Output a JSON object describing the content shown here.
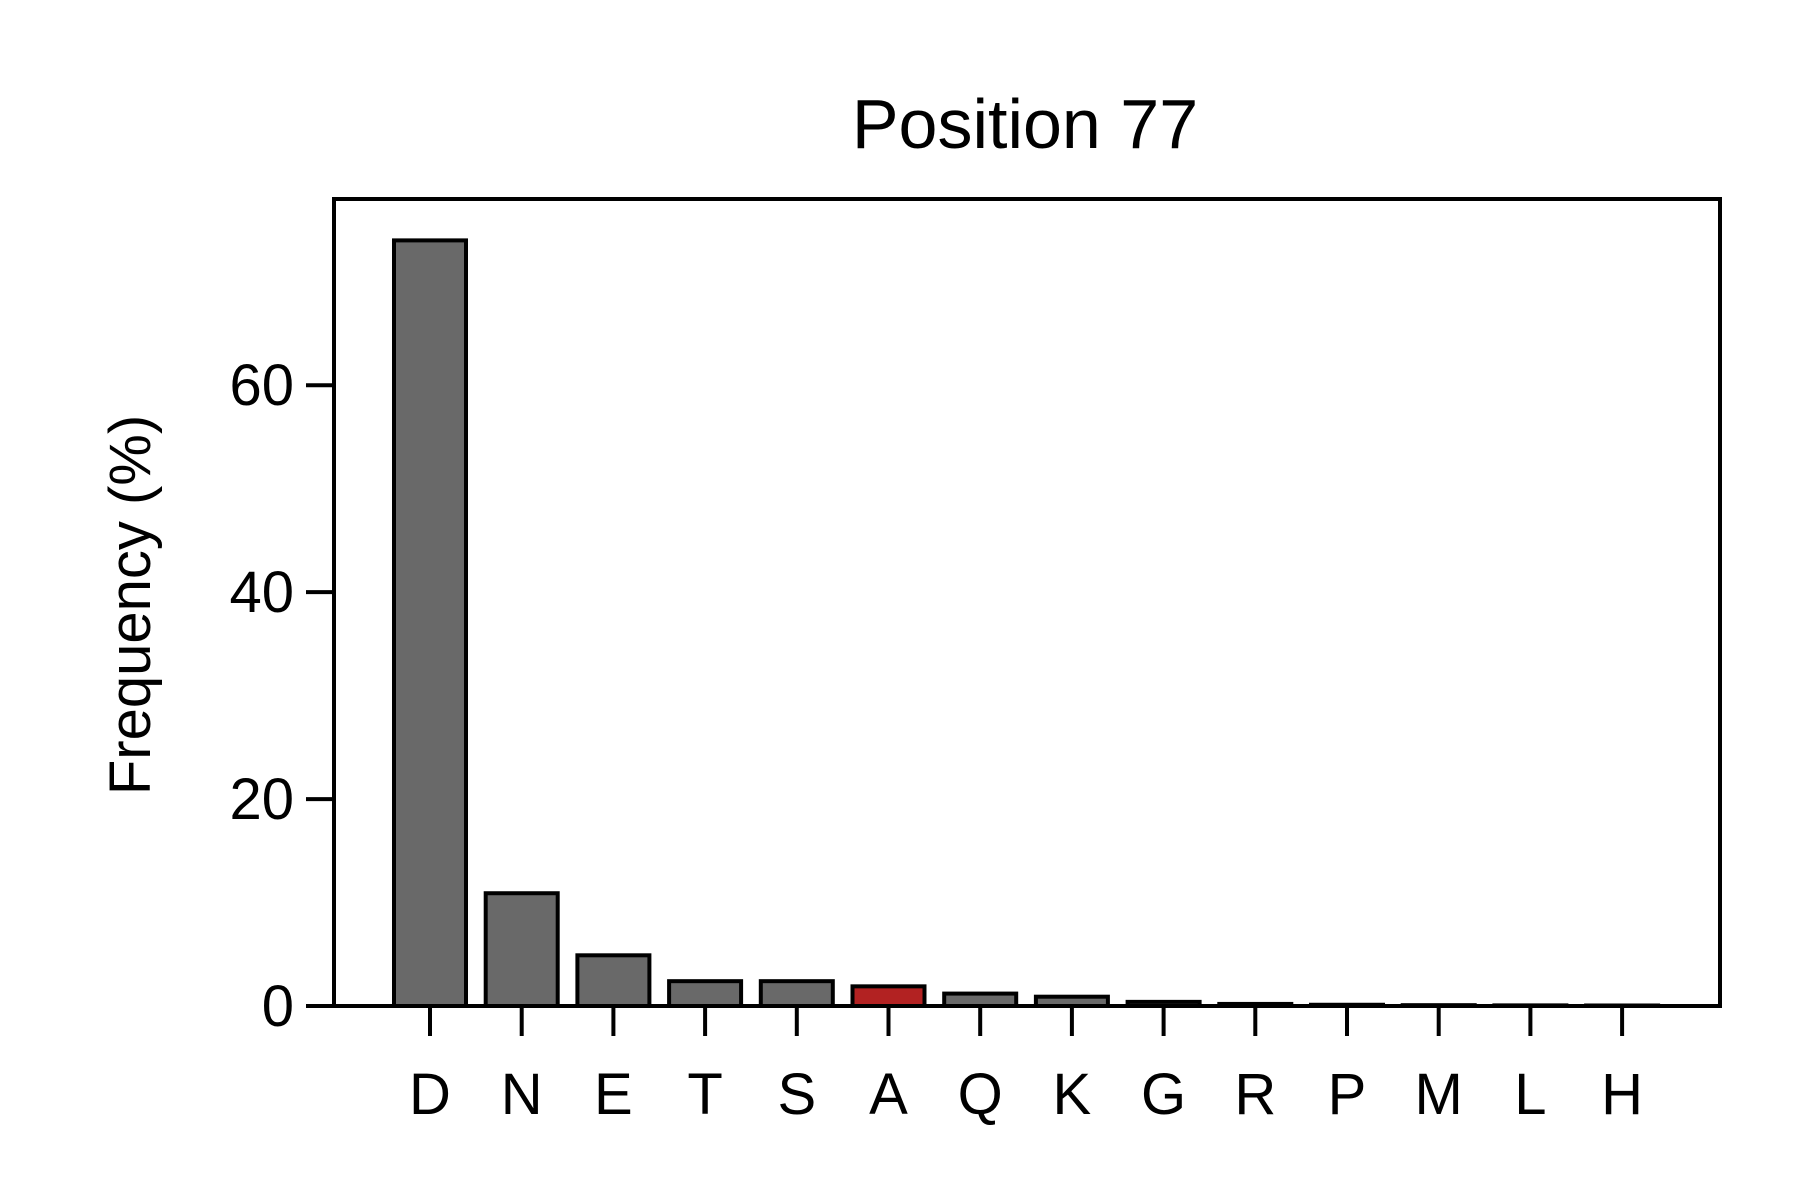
{
  "chart_data": {
    "type": "bar",
    "title": "Position 77",
    "xlabel": "",
    "ylabel": "Frequency (%)",
    "categories": [
      "D",
      "N",
      "E",
      "T",
      "S",
      "A",
      "Q",
      "K",
      "G",
      "R",
      "P",
      "M",
      "L",
      "H"
    ],
    "values": [
      74.0,
      10.9,
      4.9,
      2.4,
      2.4,
      1.9,
      1.2,
      0.9,
      0.4,
      0.2,
      0.12,
      0.08,
      0.06,
      0.05
    ],
    "highlight_category": "A",
    "ylim": [
      0,
      78
    ],
    "yticks": [
      0,
      20,
      40,
      60
    ],
    "grid": false,
    "colors": {
      "bar": "#696969",
      "highlight": "#b22222",
      "edge": "#000000"
    }
  }
}
